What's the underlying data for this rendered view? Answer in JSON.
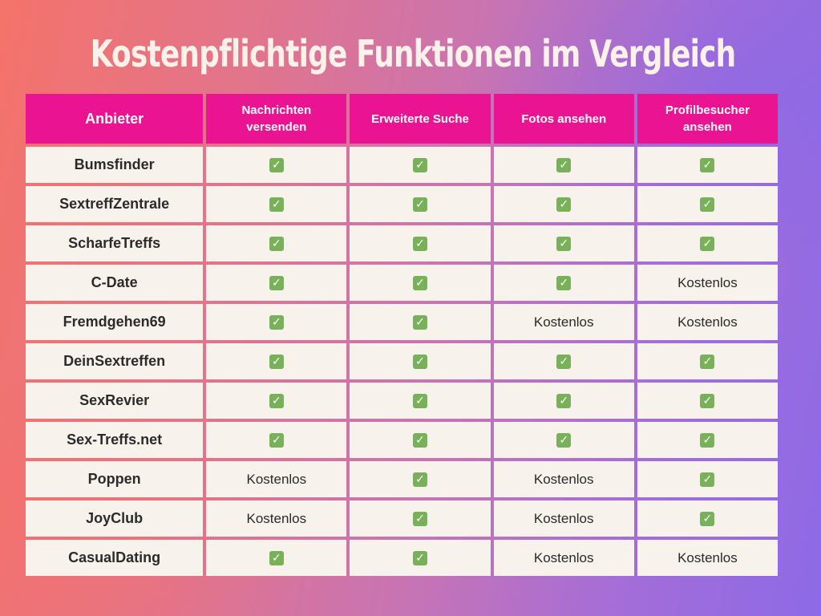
{
  "title": "Kostenpflichtige Funktionen im Vergleich",
  "colors": {
    "header_bg": "#ea1492",
    "cell_bg": "#f8f2ec",
    "check": "#78b15a"
  },
  "table": {
    "headers": [
      "Anbieter",
      "Nachrichten versenden",
      "Erweiterte Suche",
      "Fotos ansehen",
      "Profilbesucher ansehen"
    ],
    "check_icon": "check-mark-icon",
    "rows": [
      {
        "provider": "Bumsfinder",
        "cells": [
          "✓",
          "✓",
          "✓",
          "✓"
        ]
      },
      {
        "provider": "SextreffZentrale",
        "cells": [
          "✓",
          "✓",
          "✓",
          "✓"
        ]
      },
      {
        "provider": "ScharfeTreffs",
        "cells": [
          "✓",
          "✓",
          "✓",
          "✓"
        ]
      },
      {
        "provider": "C-Date",
        "cells": [
          "✓",
          "✓",
          "✓",
          "Kostenlos"
        ]
      },
      {
        "provider": "Fremdgehen69",
        "cells": [
          "✓",
          "✓",
          "Kostenlos",
          "Kostenlos"
        ]
      },
      {
        "provider": "DeinSextreffen",
        "cells": [
          "✓",
          "✓",
          "✓",
          "✓"
        ]
      },
      {
        "provider": "SexRevier",
        "cells": [
          "✓",
          "✓",
          "✓",
          "✓"
        ]
      },
      {
        "provider": "Sex-Treffs.net",
        "cells": [
          "✓",
          "✓",
          "✓",
          "✓"
        ]
      },
      {
        "provider": "Poppen",
        "cells": [
          "Kostenlos",
          "✓",
          "Kostenlos",
          "✓"
        ]
      },
      {
        "provider": "JoyClub",
        "cells": [
          "Kostenlos",
          "✓",
          "Kostenlos",
          "✓"
        ]
      },
      {
        "provider": "CasualDating",
        "cells": [
          "✓",
          "✓",
          "Kostenlos",
          "Kostenlos"
        ]
      }
    ]
  }
}
